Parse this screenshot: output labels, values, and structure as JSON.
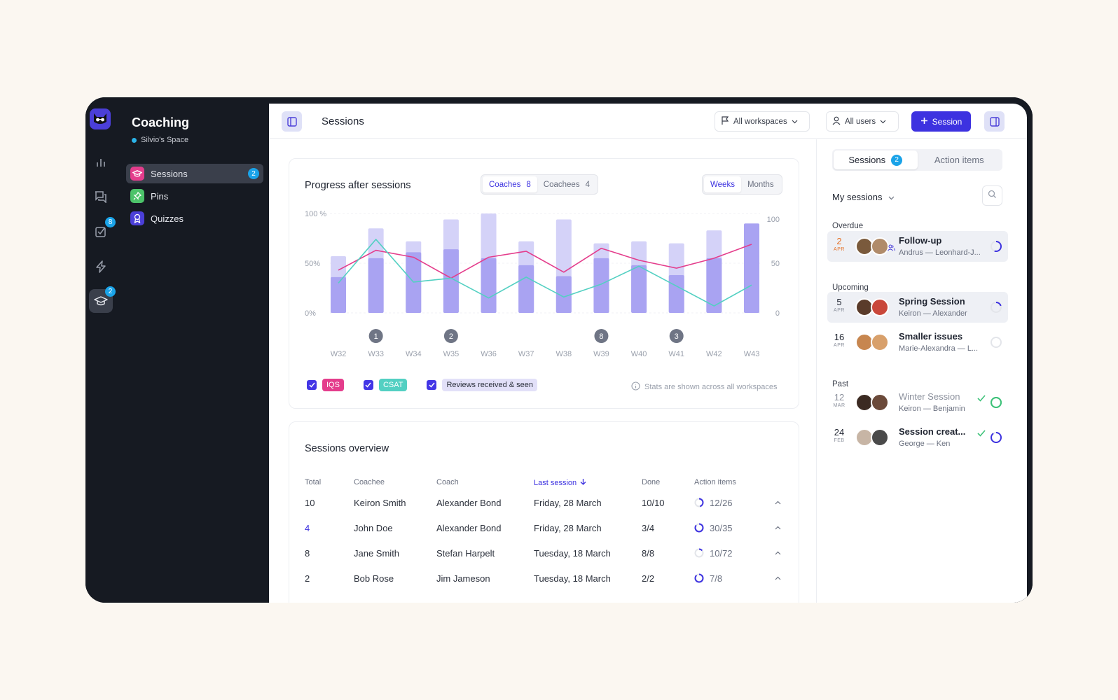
{
  "app": {
    "title": "Coaching",
    "space": "Silvio's Space"
  },
  "rail": {
    "tasks_badge": "8",
    "coaching_badge": "2"
  },
  "sidebar": {
    "items": [
      {
        "label": "Sessions",
        "badge": "2"
      },
      {
        "label": "Pins"
      },
      {
        "label": "Quizzes"
      }
    ]
  },
  "topbar": {
    "title": "Sessions",
    "workspace_select": "All workspaces",
    "users_select": "All users",
    "new_session_label": "Session"
  },
  "progress": {
    "title": "Progress after sessions",
    "tabs": [
      {
        "label": "Coaches",
        "count": "8"
      },
      {
        "label": "Coachees",
        "count": "4"
      }
    ],
    "period_tabs": [
      "Weeks",
      "Months"
    ],
    "legend": [
      "IQS",
      "CSAT",
      "Reviews received & seen"
    ],
    "note": "Stats are shown across all workspaces"
  },
  "chart_data": {
    "type": "bar",
    "categories": [
      "W32",
      "W33",
      "W34",
      "W35",
      "W36",
      "W37",
      "W38",
      "W39",
      "W40",
      "W41",
      "W42",
      "W43"
    ],
    "left_ticks": [
      "100 %",
      "50%",
      "0%"
    ],
    "right_ticks": [
      "100",
      "50",
      "0"
    ],
    "ylim": [
      0,
      100
    ],
    "series": [
      {
        "name": "Reviews received & seen",
        "kind": "bar",
        "values": [
          57,
          85,
          72,
          94,
          100,
          72,
          94,
          70,
          72,
          70,
          83,
          83
        ]
      },
      {
        "kind": "bar",
        "values": [
          36,
          55,
          61,
          64,
          55,
          48,
          37,
          55,
          48,
          38,
          55,
          90
        ]
      },
      {
        "name": "IQS",
        "kind": "line",
        "color": "#e43d8c",
        "values": [
          43,
          63,
          56,
          35,
          56,
          62,
          41,
          65,
          53,
          45,
          55,
          69
        ]
      },
      {
        "name": "CSAT",
        "kind": "line",
        "color": "#53d0c2",
        "values": [
          30,
          74,
          31,
          35,
          15,
          36,
          16,
          29,
          47,
          27,
          7,
          28
        ]
      }
    ],
    "markers": [
      {
        "category": "W33",
        "label": "1"
      },
      {
        "category": "W35",
        "label": "2"
      },
      {
        "category": "W39",
        "label": "8"
      },
      {
        "category": "W41",
        "label": "3"
      }
    ]
  },
  "overview": {
    "title": "Sessions overview",
    "columns": [
      "Total",
      "Coachee",
      "Coach",
      "Last session",
      "Done",
      "Action items"
    ],
    "rows": [
      {
        "total": "10",
        "coachee": "Keiron Smith",
        "coach": "Alexander Bond",
        "last": "Friday, 28 March",
        "done": "10/10",
        "actions": "12/26",
        "progress": 0.46
      },
      {
        "total": "4",
        "coachee": "John Doe",
        "coach": "Alexander Bond",
        "last": "Friday, 28 March",
        "done": "3/4",
        "actions": "30/35",
        "progress": 0.86
      },
      {
        "total": "8",
        "coachee": "Jane Smith",
        "coach": "Stefan Harpelt",
        "last": "Tuesday, 18 March",
        "done": "8/8",
        "actions": "10/72",
        "progress": 0.14
      },
      {
        "total": "2",
        "coachee": "Bob Rose",
        "coach": "Jim Jameson",
        "last": "Tuesday, 18 March",
        "done": "2/2",
        "actions": "7/8",
        "progress": 0.88
      }
    ]
  },
  "right_panel": {
    "tabs": [
      {
        "label": "Sessions",
        "badge": "2"
      },
      {
        "label": "Action items"
      }
    ],
    "heading": "My sessions",
    "sections": {
      "overdue": "Overdue",
      "upcoming": "Upcoming",
      "past": "Past"
    },
    "sessions": [
      {
        "day": "2",
        "month": "APR",
        "title": "Follow-up",
        "people": "Andrus — Leonhard-J...",
        "progress": 0.55
      },
      {
        "day": "5",
        "month": "APR",
        "title": "Spring Session",
        "people": "Keiron — Alexander",
        "progress": 0.2
      },
      {
        "day": "16",
        "month": "APR",
        "title": "Smaller issues",
        "people": "Marie-Alexandra — L...",
        "progress": 0
      },
      {
        "day": "12",
        "month": "MAR",
        "title": "Winter Session",
        "people": "Keiron — Benjamin",
        "progress": 1
      },
      {
        "day": "24",
        "month": "FEB",
        "title": "Session creat...",
        "people": "George — Ken",
        "progress": 0.9
      }
    ]
  },
  "colors": {
    "accent": "#3d32e0",
    "iqs": "#e43d8c",
    "csat": "#53d0c2",
    "bar": "#a9a3f2",
    "bar_light": "#d4d2f8"
  }
}
